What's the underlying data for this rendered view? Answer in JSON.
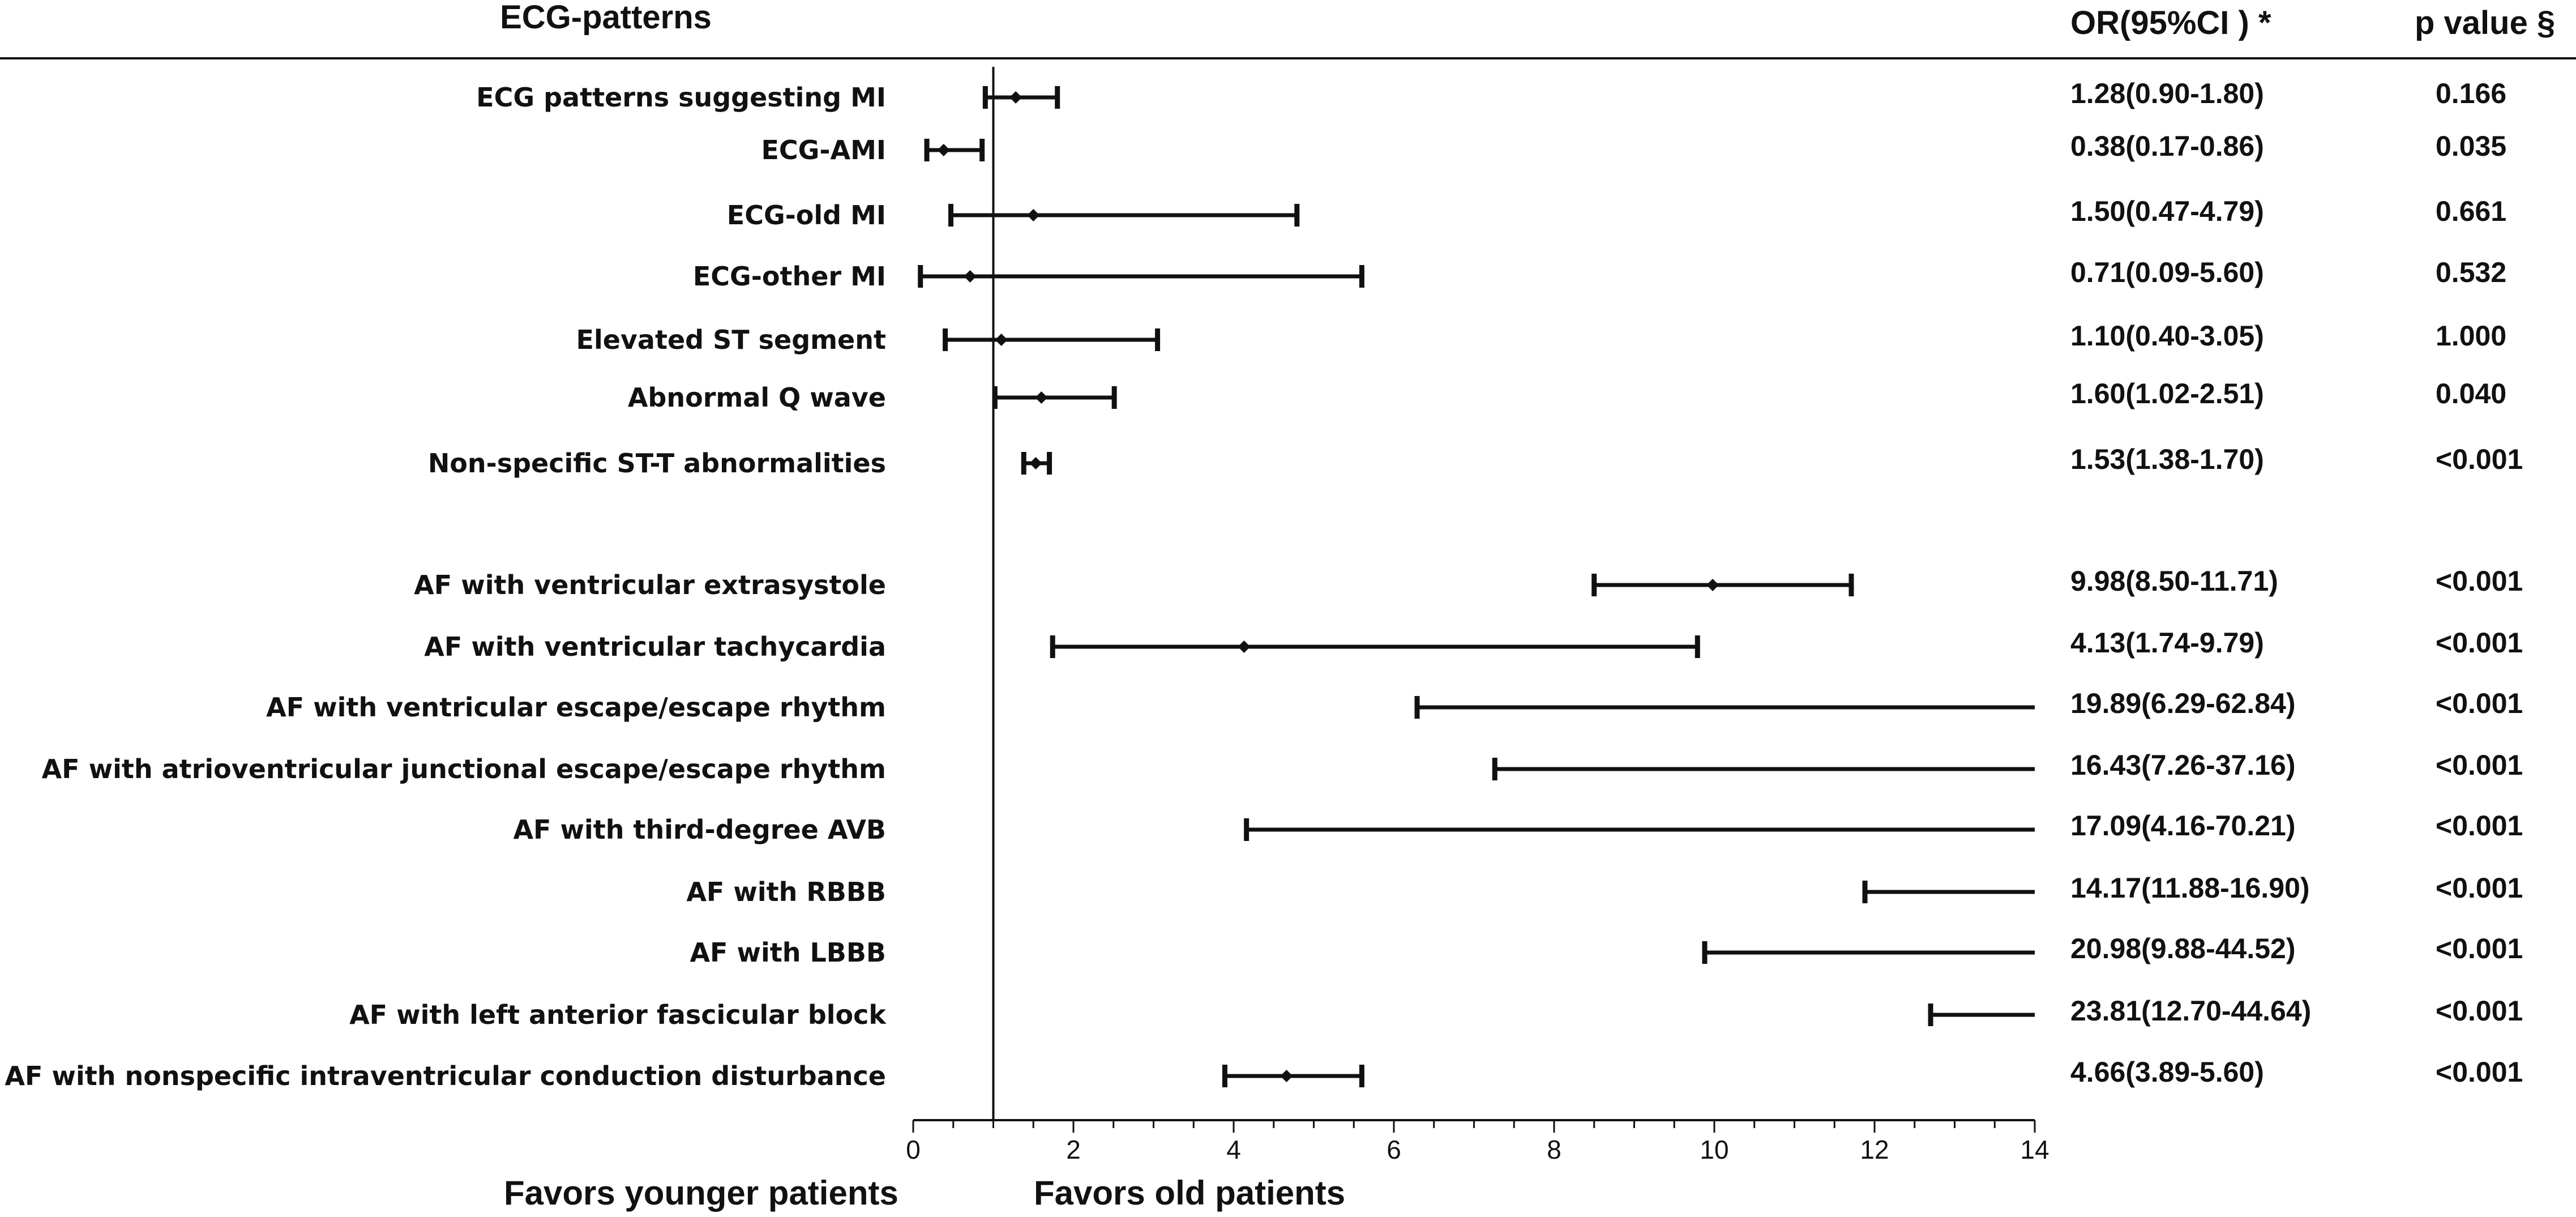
{
  "chart_data": {
    "type": "forest",
    "header": {
      "label_col": "ECG-patterns",
      "or_col": "OR(95%CI ) *",
      "p_col": "p value §"
    },
    "xlabel_left": "Favors younger patients",
    "xlabel_right": "Favors old patients",
    "xlim": [
      0,
      14
    ],
    "xticks": [
      0,
      2,
      4,
      6,
      8,
      10,
      12,
      14
    ],
    "tick_labels": [
      "0",
      "2",
      "4",
      "6",
      "8",
      "10",
      "12",
      "14"
    ],
    "reference_line": 1,
    "rows": [
      {
        "label": "ECG patterns suggesting MI",
        "or": 1.28,
        "lo": 0.9,
        "hi": 1.8,
        "ci_text": "1.28(0.90-1.80)",
        "p": "0.166"
      },
      {
        "label": "ECG-AMI",
        "or": 0.38,
        "lo": 0.17,
        "hi": 0.86,
        "ci_text": "0.38(0.17-0.86)",
        "p": "0.035"
      },
      {
        "label": "ECG-old MI",
        "or": 1.5,
        "lo": 0.47,
        "hi": 4.79,
        "ci_text": "1.50(0.47-4.79)",
        "p": "0.661"
      },
      {
        "label": "ECG-other MI",
        "or": 0.71,
        "lo": 0.09,
        "hi": 5.6,
        "ci_text": "0.71(0.09-5.60)",
        "p": "0.532"
      },
      {
        "label": "Elevated ST segment",
        "or": 1.1,
        "lo": 0.4,
        "hi": 3.05,
        "ci_text": "1.10(0.40-3.05)",
        "p": "1.000"
      },
      {
        "label": "Abnormal Q wave",
        "or": 1.6,
        "lo": 1.02,
        "hi": 2.51,
        "ci_text": "1.60(1.02-2.51)",
        "p": "0.040"
      },
      {
        "label": "Non-specific ST-T abnormalities",
        "or": 1.53,
        "lo": 1.38,
        "hi": 1.7,
        "ci_text": "1.53(1.38-1.70)",
        "p": "<0.001"
      },
      {
        "label": "AF with ventricular extrasystole",
        "or": 9.98,
        "lo": 8.5,
        "hi": 11.71,
        "ci_text": "9.98(8.50-11.71)",
        "p": "<0.001"
      },
      {
        "label": "AF with ventricular tachycardia",
        "or": 4.13,
        "lo": 1.74,
        "hi": 9.79,
        "ci_text": "4.13(1.74-9.79)",
        "p": "<0.001"
      },
      {
        "label": "AF with ventricular escape/escape rhythm",
        "or": 19.89,
        "lo": 6.29,
        "hi": 62.84,
        "ci_text": "19.89(6.29-62.84)",
        "p": "<0.001"
      },
      {
        "label": "AF with atrioventricular junctional escape/escape rhythm",
        "or": 16.43,
        "lo": 7.26,
        "hi": 37.16,
        "ci_text": "16.43(7.26-37.16)",
        "p": "<0.001"
      },
      {
        "label": "AF with third-degree AVB",
        "or": 17.09,
        "lo": 4.16,
        "hi": 70.21,
        "ci_text": "17.09(4.16-70.21)",
        "p": "<0.001"
      },
      {
        "label": "AF with RBBB",
        "or": 14.17,
        "lo": 11.88,
        "hi": 16.9,
        "ci_text": "14.17(11.88-16.90)",
        "p": "<0.001"
      },
      {
        "label": "AF with LBBB",
        "or": 20.98,
        "lo": 9.88,
        "hi": 44.52,
        "ci_text": "20.98(9.88-44.52)",
        "p": "<0.001"
      },
      {
        "label": "AF with left anterior fascicular block",
        "or": 23.81,
        "lo": 12.7,
        "hi": 44.64,
        "ci_text": "23.81(12.70-44.64)",
        "p": "<0.001"
      },
      {
        "label": "AF with nonspecific intraventricular conduction disturbance",
        "or": 4.66,
        "lo": 3.89,
        "hi": 5.6,
        "ci_text": "4.66(3.89-5.60)",
        "p": "<0.001"
      }
    ]
  }
}
